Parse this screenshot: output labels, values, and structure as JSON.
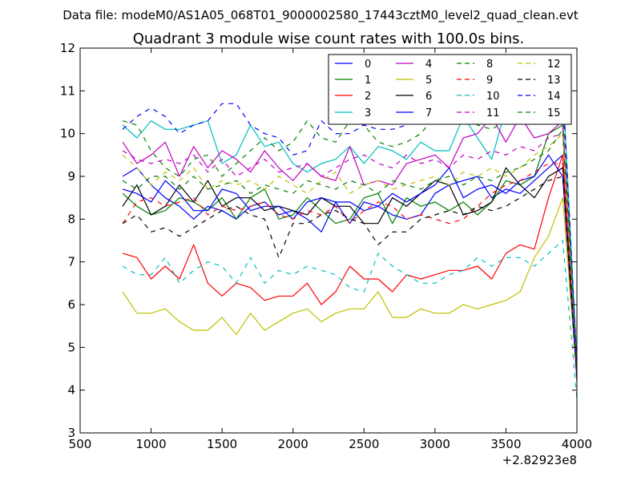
{
  "figure_text": {
    "suptitle": "Data file: modeM0/AS1A05_068T01_9000002580_17443cztM0_level2_quad_clean.evt",
    "title": "Quadrant 3 module wise count rates with 100.0s bins.",
    "x_offset_label": "+2.82923e8"
  },
  "chart_data": {
    "type": "line",
    "title": "Quadrant 3 module wise count rates with 100.0s bins.",
    "xlabel": "",
    "ylabel": "",
    "x_offset": 282923000,
    "xlim": [
      500,
      4000
    ],
    "ylim": [
      3,
      12
    ],
    "xticks": [
      500,
      1000,
      1500,
      2000,
      2500,
      3000,
      3500,
      4000
    ],
    "yticks": [
      3,
      4,
      5,
      6,
      7,
      8,
      9,
      10,
      11,
      12
    ],
    "grid": false,
    "legend": "top-right, 4 columns",
    "x": [
      800,
      900,
      1000,
      1100,
      1200,
      1300,
      1400,
      1500,
      1600,
      1700,
      1800,
      1900,
      2000,
      2100,
      2200,
      2300,
      2400,
      2500,
      2600,
      2700,
      2800,
      2900,
      3000,
      3100,
      3200,
      3300,
      3400,
      3500,
      3600,
      3700,
      3800,
      3900,
      4000
    ],
    "series": [
      {
        "name": "0",
        "color": "#0000ff",
        "dashed": false,
        "values": [
          9.0,
          9.2,
          8.8,
          8.5,
          8.3,
          8.0,
          8.3,
          8.2,
          8.0,
          8.3,
          8.4,
          8.1,
          8.2,
          8.0,
          7.7,
          8.4,
          8.4,
          8.2,
          8.3,
          8.1,
          8.0,
          8.1,
          8.6,
          8.8,
          8.9,
          9.0,
          8.5,
          8.7,
          8.6,
          8.9,
          9.2,
          9.5,
          4.2
        ]
      },
      {
        "name": "1",
        "color": "#008000",
        "dashed": false,
        "values": [
          8.6,
          8.3,
          8.1,
          8.2,
          8.5,
          8.4,
          8.2,
          8.5,
          8.0,
          8.5,
          8.7,
          8.0,
          8.1,
          8.5,
          8.2,
          7.9,
          8.0,
          8.5,
          8.6,
          7.9,
          8.5,
          8.3,
          8.4,
          8.2,
          8.4,
          8.1,
          8.4,
          8.9,
          8.8,
          9.0,
          10.0,
          10.2,
          4.5
        ]
      },
      {
        "name": "2",
        "color": "#ff0000",
        "dashed": false,
        "values": [
          7.2,
          7.1,
          6.6,
          6.9,
          6.6,
          7.4,
          6.5,
          6.2,
          6.5,
          6.4,
          6.1,
          6.2,
          6.2,
          6.5,
          6.0,
          6.3,
          6.9,
          6.6,
          6.6,
          6.3,
          6.7,
          6.6,
          6.7,
          6.8,
          6.8,
          6.9,
          6.6,
          7.2,
          7.4,
          7.3,
          8.5,
          9.5,
          4.3
        ]
      },
      {
        "name": "3",
        "color": "#00bfbf",
        "dashed": false,
        "values": [
          10.2,
          9.9,
          10.3,
          10.1,
          10.1,
          10.2,
          10.3,
          9.3,
          9.5,
          10.2,
          9.7,
          9.8,
          9.3,
          9.1,
          9.3,
          9.4,
          9.7,
          9.3,
          9.7,
          9.6,
          9.4,
          9.8,
          9.6,
          9.6,
          10.4,
          9.9,
          9.4,
          10.6,
          10.6,
          10.7,
          10.7,
          11.2,
          4.7
        ]
      },
      {
        "name": "4",
        "color": "#bf00bf",
        "dashed": false,
        "values": [
          9.8,
          9.3,
          9.5,
          9.8,
          9.0,
          9.7,
          9.2,
          9.6,
          9.4,
          9.1,
          9.6,
          9.2,
          8.9,
          9.3,
          9.0,
          8.9,
          9.7,
          8.8,
          8.9,
          8.8,
          9.3,
          9.4,
          9.5,
          9.2,
          9.9,
          10.0,
          10.4,
          9.8,
          10.4,
          9.9,
          10.0,
          10.3,
          4.6
        ]
      },
      {
        "name": "5",
        "color": "#bfbf00",
        "dashed": false,
        "values": [
          6.3,
          5.8,
          5.8,
          5.9,
          5.6,
          5.4,
          5.4,
          5.7,
          5.3,
          5.8,
          5.4,
          5.6,
          5.8,
          5.9,
          5.6,
          5.8,
          5.9,
          5.9,
          6.3,
          5.7,
          5.7,
          5.9,
          5.8,
          5.8,
          6.0,
          5.9,
          6.0,
          6.1,
          6.3,
          7.1,
          7.6,
          8.5,
          4.3
        ]
      },
      {
        "name": "6",
        "color": "#000000",
        "dashed": false,
        "values": [
          8.3,
          8.8,
          8.1,
          8.3,
          8.8,
          8.4,
          8.9,
          8.3,
          8.5,
          8.5,
          8.2,
          8.3,
          8.2,
          8.1,
          8.5,
          8.3,
          8.3,
          7.9,
          7.9,
          8.5,
          8.3,
          8.6,
          8.9,
          8.8,
          8.1,
          8.2,
          8.4,
          9.2,
          8.8,
          8.5,
          9.0,
          9.2,
          4.4
        ]
      },
      {
        "name": "7",
        "color": "#0000ff",
        "dashed": false,
        "values": [
          8.7,
          8.6,
          8.4,
          8.9,
          8.6,
          8.2,
          8.2,
          8.7,
          8.6,
          8.2,
          8.3,
          8.3,
          8.0,
          8.4,
          8.5,
          8.4,
          7.9,
          8.4,
          8.3,
          8.6,
          8.4,
          8.6,
          8.8,
          9.2,
          8.5,
          8.7,
          8.8,
          8.6,
          8.9,
          9.0,
          9.5,
          9.0,
          4.3
        ]
      },
      {
        "name": "8",
        "color": "#008000",
        "dashed": true,
        "values": [
          10.3,
          10.2,
          9.6,
          9.2,
          9.0,
          9.4,
          9.5,
          9.0,
          9.3,
          9.6,
          9.9,
          9.6,
          9.8,
          10.3,
          9.9,
          9.8,
          10.3,
          10.2,
          9.8,
          9.7,
          9.8,
          10.0,
          10.4,
          10.6,
          10.5,
          10.2,
          10.1,
          10.3,
          10.7,
          10.8,
          10.9,
          10.8,
          4.5
        ]
      },
      {
        "name": "9",
        "color": "#ff0000",
        "dashed": true,
        "values": [
          7.9,
          8.4,
          8.5,
          8.3,
          8.4,
          8.5,
          8.1,
          8.3,
          8.2,
          8.3,
          8.4,
          8.1,
          8.0,
          8.2,
          8.1,
          8.3,
          7.9,
          8.2,
          8.4,
          8.3,
          8.0,
          8.1,
          8.0,
          7.9,
          8.0,
          8.3,
          8.6,
          8.8,
          8.9,
          9.1,
          9.3,
          9.3,
          4.2
        ]
      },
      {
        "name": "10",
        "color": "#00bfbf",
        "dashed": true,
        "values": [
          6.9,
          6.7,
          6.7,
          7.1,
          6.5,
          6.8,
          7.0,
          6.9,
          6.5,
          7.1,
          6.5,
          6.8,
          6.7,
          6.9,
          6.8,
          6.7,
          6.4,
          6.3,
          7.2,
          6.9,
          6.7,
          6.5,
          6.5,
          6.7,
          6.8,
          7.1,
          6.9,
          7.1,
          7.1,
          6.9,
          7.2,
          7.5,
          3.8
        ]
      },
      {
        "name": "11",
        "color": "#bf00bf",
        "dashed": true,
        "values": [
          9.6,
          9.4,
          9.3,
          9.4,
          9.3,
          9.5,
          9.1,
          9.4,
          9.0,
          9.2,
          9.4,
          9.1,
          9.2,
          9.3,
          9.0,
          9.2,
          9.4,
          9.5,
          9.3,
          9.2,
          9.5,
          9.3,
          9.4,
          9.2,
          9.5,
          9.4,
          9.6,
          9.5,
          9.7,
          9.6,
          9.9,
          10.0,
          4.4
        ]
      },
      {
        "name": "12",
        "color": "#bfbf00",
        "dashed": true,
        "values": [
          9.5,
          9.2,
          8.8,
          9.1,
          8.9,
          9.2,
          8.7,
          8.9,
          8.8,
          8.9,
          8.7,
          9.0,
          8.8,
          8.6,
          8.9,
          9.1,
          8.6,
          8.8,
          8.9,
          8.7,
          8.8,
          8.9,
          9.0,
          8.8,
          9.1,
          9.0,
          9.2,
          9.0,
          9.2,
          9.5,
          9.7,
          10.0,
          4.6
        ]
      },
      {
        "name": "13",
        "color": "#000000",
        "dashed": true,
        "values": [
          7.9,
          8.1,
          7.7,
          7.8,
          7.6,
          7.8,
          8.0,
          8.2,
          8.3,
          8.1,
          8.0,
          7.1,
          7.9,
          7.9,
          8.1,
          8.2,
          8.0,
          7.9,
          7.4,
          7.7,
          7.7,
          8.0,
          8.1,
          8.2,
          8.1,
          8.3,
          8.2,
          8.3,
          8.5,
          8.7,
          8.9,
          9.0,
          4.3
        ]
      },
      {
        "name": "14",
        "color": "#0000ff",
        "dashed": true,
        "values": [
          10.1,
          10.4,
          10.6,
          10.4,
          10.0,
          10.2,
          10.3,
          10.7,
          10.7,
          10.2,
          10.0,
          9.9,
          9.5,
          9.6,
          10.3,
          10.0,
          10.0,
          10.2,
          10.1,
          10.1,
          10.2,
          10.3,
          10.2,
          10.5,
          10.4,
          10.4,
          10.5,
          10.6,
          10.7,
          10.8,
          11.0,
          11.2,
          4.5
        ]
      },
      {
        "name": "15",
        "color": "#008000",
        "dashed": true,
        "values": [
          8.9,
          8.7,
          9.0,
          9.0,
          8.7,
          9.0,
          8.7,
          8.8,
          8.9,
          8.6,
          8.8,
          8.7,
          8.6,
          8.9,
          8.8,
          8.7,
          8.9,
          8.8,
          8.6,
          8.9,
          8.8,
          8.7,
          8.9,
          9.0,
          8.8,
          9.0,
          8.9,
          9.1,
          9.2,
          9.4,
          9.6,
          10.1,
          4.4
        ]
      }
    ]
  }
}
